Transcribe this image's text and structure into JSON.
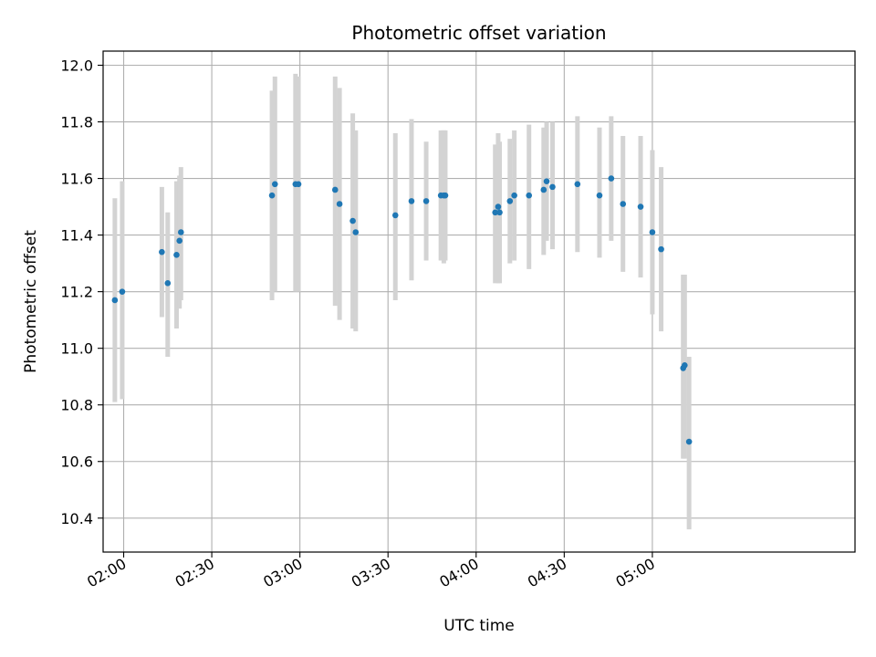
{
  "chart_data": {
    "type": "scatter",
    "title": "Photometric offset variation",
    "xlabel": "UTC time",
    "ylabel": "Photometric offset",
    "x_unit": "UTC HH:MM",
    "xlim": [
      "01:53",
      "06:09"
    ],
    "ylim": [
      10.28,
      12.05
    ],
    "x_ticks": [
      "02:00",
      "02:30",
      "03:00",
      "03:30",
      "04:00",
      "04:30",
      "05:00"
    ],
    "y_ticks": [
      "10.4",
      "10.6",
      "10.8",
      "11.0",
      "11.2",
      "11.4",
      "11.6",
      "11.8",
      "12.0"
    ],
    "grid": true,
    "colors": {
      "point": "#1f77b4",
      "errorbar": "#d3d3d3",
      "grid": "#b0b0b0"
    },
    "series": [
      {
        "points": [
          {
            "x": "01:57:00",
            "y": 11.17,
            "ylow": 10.81,
            "yhigh": 11.53
          },
          {
            "x": "01:59:30",
            "y": 11.2,
            "ylow": 10.82,
            "yhigh": 11.59
          },
          {
            "x": "02:13:00",
            "y": 11.34,
            "ylow": 11.11,
            "yhigh": 11.57
          },
          {
            "x": "02:15:00",
            "y": 11.23,
            "ylow": 10.97,
            "yhigh": 11.48
          },
          {
            "x": "02:18:00",
            "y": 11.33,
            "ylow": 11.07,
            "yhigh": 11.59
          },
          {
            "x": "02:19:00",
            "y": 11.38,
            "ylow": 11.14,
            "yhigh": 11.61
          },
          {
            "x": "02:19:30",
            "y": 11.41,
            "ylow": 11.17,
            "yhigh": 11.64
          },
          {
            "x": "02:50:30",
            "y": 11.54,
            "ylow": 11.17,
            "yhigh": 11.91
          },
          {
            "x": "02:51:30",
            "y": 11.58,
            "ylow": 11.2,
            "yhigh": 11.96
          },
          {
            "x": "02:58:30",
            "y": 11.58,
            "ylow": 11.2,
            "yhigh": 11.97
          },
          {
            "x": "02:59:30",
            "y": 11.58,
            "ylow": 11.2,
            "yhigh": 11.96
          },
          {
            "x": "03:12:00",
            "y": 11.56,
            "ylow": 11.15,
            "yhigh": 11.96
          },
          {
            "x": "03:13:30",
            "y": 11.51,
            "ylow": 11.1,
            "yhigh": 11.92
          },
          {
            "x": "03:18:00",
            "y": 11.45,
            "ylow": 11.07,
            "yhigh": 11.83
          },
          {
            "x": "03:19:00",
            "y": 11.41,
            "ylow": 11.06,
            "yhigh": 11.77
          },
          {
            "x": "03:32:30",
            "y": 11.47,
            "ylow": 11.17,
            "yhigh": 11.76
          },
          {
            "x": "03:38:00",
            "y": 11.52,
            "ylow": 11.24,
            "yhigh": 11.81
          },
          {
            "x": "03:43:00",
            "y": 11.52,
            "ylow": 11.31,
            "yhigh": 11.73
          },
          {
            "x": "03:48:00",
            "y": 11.54,
            "ylow": 11.31,
            "yhigh": 11.77
          },
          {
            "x": "03:49:00",
            "y": 11.54,
            "ylow": 11.3,
            "yhigh": 11.77
          },
          {
            "x": "03:49:30",
            "y": 11.54,
            "ylow": 11.31,
            "yhigh": 11.77
          },
          {
            "x": "04:06:30",
            "y": 11.48,
            "ylow": 11.23,
            "yhigh": 11.72
          },
          {
            "x": "04:07:30",
            "y": 11.5,
            "ylow": 11.23,
            "yhigh": 11.76
          },
          {
            "x": "04:08:00",
            "y": 11.48,
            "ylow": 11.23,
            "yhigh": 11.73
          },
          {
            "x": "04:11:30",
            "y": 11.52,
            "ylow": 11.3,
            "yhigh": 11.74
          },
          {
            "x": "04:13:00",
            "y": 11.54,
            "ylow": 11.31,
            "yhigh": 11.77
          },
          {
            "x": "04:18:00",
            "y": 11.54,
            "ylow": 11.28,
            "yhigh": 11.79
          },
          {
            "x": "04:23:00",
            "y": 11.56,
            "ylow": 11.33,
            "yhigh": 11.78
          },
          {
            "x": "04:24:00",
            "y": 11.59,
            "ylow": 11.38,
            "yhigh": 11.8
          },
          {
            "x": "04:26:00",
            "y": 11.57,
            "ylow": 11.35,
            "yhigh": 11.8
          },
          {
            "x": "04:34:30",
            "y": 11.58,
            "ylow": 11.34,
            "yhigh": 11.82
          },
          {
            "x": "04:42:00",
            "y": 11.54,
            "ylow": 11.32,
            "yhigh": 11.78
          },
          {
            "x": "04:46:00",
            "y": 11.6,
            "ylow": 11.38,
            "yhigh": 11.82
          },
          {
            "x": "04:50:00",
            "y": 11.51,
            "ylow": 11.27,
            "yhigh": 11.75
          },
          {
            "x": "04:56:00",
            "y": 11.5,
            "ylow": 11.25,
            "yhigh": 11.75
          },
          {
            "x": "05:00:00",
            "y": 11.41,
            "ylow": 11.12,
            "yhigh": 11.7
          },
          {
            "x": "05:03:00",
            "y": 11.35,
            "ylow": 11.06,
            "yhigh": 11.64
          },
          {
            "x": "05:10:30",
            "y": 10.93,
            "ylow": 10.61,
            "yhigh": 11.26
          },
          {
            "x": "05:11:00",
            "y": 10.94,
            "ylow": 10.61,
            "yhigh": 11.26
          },
          {
            "x": "05:12:30",
            "y": 10.67,
            "ylow": 10.36,
            "yhigh": 10.97
          }
        ]
      }
    ]
  }
}
